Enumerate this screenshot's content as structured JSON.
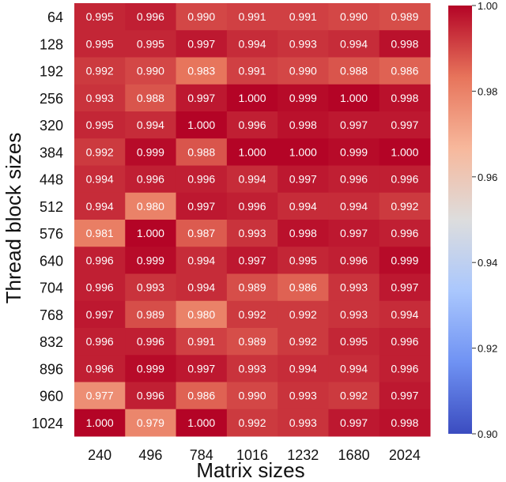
{
  "chart_data": {
    "type": "heatmap",
    "title": "",
    "xlabel": "Matrix sizes",
    "ylabel": "Thread block sizes",
    "x_categories": [
      "240",
      "496",
      "784",
      "1016",
      "1232",
      "1680",
      "2024"
    ],
    "y_categories": [
      "64",
      "128",
      "192",
      "256",
      "320",
      "384",
      "448",
      "512",
      "576",
      "640",
      "704",
      "768",
      "832",
      "896",
      "960",
      "1024"
    ],
    "values": [
      [
        0.995,
        0.996,
        0.99,
        0.991,
        0.991,
        0.99,
        0.989
      ],
      [
        0.995,
        0.995,
        0.997,
        0.994,
        0.993,
        0.994,
        0.998
      ],
      [
        0.992,
        0.99,
        0.983,
        0.991,
        0.99,
        0.988,
        0.986
      ],
      [
        0.993,
        0.988,
        0.997,
        1.0,
        0.999,
        1.0,
        0.998
      ],
      [
        0.995,
        0.994,
        1.0,
        0.996,
        0.998,
        0.997,
        0.997
      ],
      [
        0.992,
        0.999,
        0.988,
        1.0,
        1.0,
        0.999,
        1.0
      ],
      [
        0.994,
        0.996,
        0.996,
        0.994,
        0.997,
        0.996,
        0.996
      ],
      [
        0.994,
        0.98,
        0.997,
        0.996,
        0.994,
        0.994,
        0.992
      ],
      [
        0.981,
        1.0,
        0.987,
        0.993,
        0.998,
        0.997,
        0.996
      ],
      [
        0.996,
        0.999,
        0.994,
        0.997,
        0.995,
        0.996,
        0.999
      ],
      [
        0.996,
        0.993,
        0.994,
        0.989,
        0.986,
        0.993,
        0.997
      ],
      [
        0.997,
        0.989,
        0.98,
        0.992,
        0.992,
        0.993,
        0.994
      ],
      [
        0.996,
        0.996,
        0.991,
        0.989,
        0.992,
        0.995,
        0.996
      ],
      [
        0.996,
        0.999,
        0.997,
        0.993,
        0.994,
        0.994,
        0.996
      ],
      [
        0.977,
        0.996,
        0.986,
        0.99,
        0.993,
        0.992,
        0.997
      ],
      [
        1.0,
        0.979,
        1.0,
        0.992,
        0.993,
        0.997,
        0.998
      ]
    ],
    "value_format_decimals": 3,
    "colorbar": {
      "min": 0.9,
      "max": 1.0,
      "ticks": [
        0.9,
        0.92,
        0.94,
        0.96,
        0.98,
        1.0
      ],
      "tick_labels": [
        "0.90",
        "0.92",
        "0.94",
        "0.96",
        "0.98",
        "1.00"
      ],
      "colormap": "coolwarm",
      "stops": [
        "#3b4cc0",
        "#6f92f3",
        "#aac7fd",
        "#dddddd",
        "#f7b89c",
        "#e7745b",
        "#b40426"
      ]
    }
  }
}
